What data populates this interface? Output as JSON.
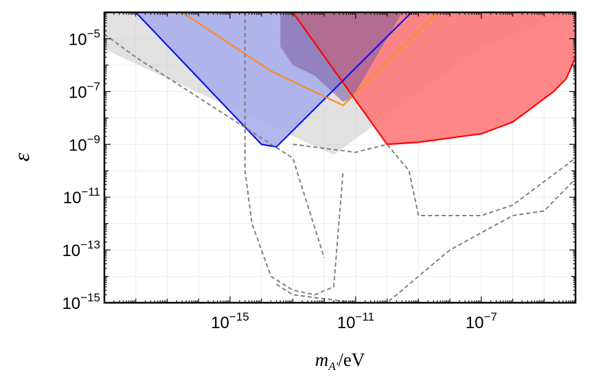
{
  "chart_data": {
    "type": "area",
    "title": "",
    "xlabel": "m_A′/eV",
    "xlabel_parts": {
      "symbol": "m",
      "subscript": "A′",
      "unit": "/eV"
    },
    "ylabel": "ε",
    "x_scale": "log",
    "y_scale": "log",
    "xlim": [
      1e-19,
      0.0001
    ],
    "ylim": [
      1e-15,
      0.0001
    ],
    "x_ticks": [
      {
        "value": 1e-15,
        "base": "10",
        "exp": "−15"
      },
      {
        "value": 1e-11,
        "base": "10",
        "exp": "−11"
      },
      {
        "value": 1e-07,
        "base": "10",
        "exp": "−7"
      }
    ],
    "y_ticks": [
      {
        "value": 1e-15,
        "base": "10",
        "exp": "−15"
      },
      {
        "value": 1e-13,
        "base": "10",
        "exp": "−13"
      },
      {
        "value": 1e-11,
        "base": "10",
        "exp": "−11"
      },
      {
        "value": 1e-09,
        "base": "10",
        "exp": "−9"
      },
      {
        "value": 1e-07,
        "base": "10",
        "exp": "−7"
      },
      {
        "value": 1e-05,
        "base": "10",
        "exp": "−5"
      }
    ],
    "grid": true,
    "legend": "none",
    "colors": {
      "blue_fill": "#aab0ec",
      "blue_line": "#1010f0",
      "red_fill": "#ff7a7a",
      "red_line": "#ff0000",
      "orange_line": "#ff8c1a",
      "purple_fill": "#7a5a9a",
      "gray_fill": "#c8c8c8",
      "gray_dash": "#7f7f7f"
    },
    "series": [
      {
        "kind": "region",
        "color": "gray_fill",
        "points": [
          [
            1e-19,
            4e-06
          ],
          [
            2e-12,
            4e-10
          ],
          [
            1e-07,
            5e-06
          ],
          [
            0.0001,
            0.0001
          ]
        ]
      },
      {
        "kind": "region",
        "color": "blue_fill",
        "line": "blue_line",
        "points": [
          [
            1e-19,
            0.00011
          ],
          [
            1e-18,
            0.0001
          ],
          [
            1e-14,
            1e-09
          ],
          [
            3e-14,
            8e-10
          ],
          [
            6e-10,
            0.0001
          ]
        ]
      },
      {
        "kind": "curve",
        "color": "orange_line",
        "points": [
          [
            3e-17,
            0.0001
          ],
          [
            2e-14,
            6e-07
          ],
          [
            4e-12,
            3e-08
          ],
          [
            4e-09,
            0.0001
          ]
        ]
      },
      {
        "kind": "region",
        "color": "red_fill",
        "line": "red_line",
        "points": [
          [
            1e-13,
            0.0001
          ],
          [
            1e-10,
            1e-09
          ],
          [
            1e-09,
            1.2e-09
          ],
          [
            1e-07,
            2.5e-09
          ],
          [
            1e-06,
            7e-09
          ],
          [
            2e-05,
            1e-07
          ],
          [
            5e-05,
            3e-07
          ],
          [
            0.0001,
            2e-06
          ]
        ]
      },
      {
        "kind": "region",
        "color": "purple_fill",
        "points": [
          [
            4e-14,
            0.0001
          ],
          [
            4e-14,
            5e-06
          ],
          [
            1e-13,
            1e-06
          ],
          [
            5e-13,
            4e-07
          ],
          [
            4e-12,
            4e-08
          ],
          [
            8e-12,
            6e-08
          ],
          [
            3e-10,
            0.0001
          ]
        ]
      },
      {
        "kind": "curve",
        "color": "gray_dash",
        "points": [
          [
            1e-19,
            1.5e-05
          ],
          [
            1e-18,
            2e-06
          ],
          [
            1e-13,
            3e-10
          ],
          [
            1e-12,
            5e-14
          ]
        ]
      },
      {
        "kind": "curve",
        "color": "gray_dash",
        "points": [
          [
            3e-14,
            5e-15
          ],
          [
            1e-13,
            2e-15
          ],
          [
            1e-11,
            1e-15
          ],
          [
            1e-10,
            1e-15
          ],
          [
            1e-08,
            1e-13
          ],
          [
            1e-06,
            2e-12
          ],
          [
            1e-05,
            3e-12
          ],
          [
            0.0001,
            5e-11
          ]
        ]
      },
      {
        "kind": "curve",
        "color": "gray_dash",
        "points": [
          [
            3e-15,
            0.0001
          ],
          [
            3e-15,
            1e-10
          ],
          [
            5e-15,
            1e-12
          ],
          [
            2e-14,
            1e-14
          ],
          [
            1e-13,
            3e-15
          ],
          [
            5e-13,
            2e-15
          ],
          [
            2e-12,
            4e-15
          ],
          [
            4e-12,
            1e-10
          ]
        ]
      },
      {
        "kind": "curve",
        "color": "gray_dash",
        "points": [
          [
            1e-13,
            1e-09
          ],
          [
            1e-11,
            5e-10
          ],
          [
            1e-10,
            1e-09
          ],
          [
            5e-10,
            1e-10
          ],
          [
            1e-09,
            2e-12
          ],
          [
            1e-07,
            2e-12
          ],
          [
            1e-06,
            5e-12
          ],
          [
            0.0001,
            3e-10
          ]
        ]
      }
    ]
  }
}
